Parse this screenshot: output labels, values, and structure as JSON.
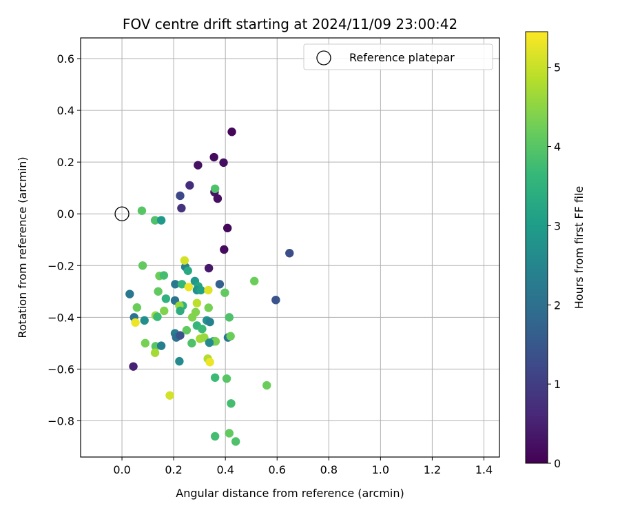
{
  "chart_data": {
    "type": "scatter",
    "title": "FOV centre drift starting at 2024/11/09 23:00:42",
    "xlabel": "Angular distance from reference (arcmin)",
    "ylabel": "Rotation from reference (arcmin)",
    "xlim": [
      -0.16,
      1.46
    ],
    "ylim": [
      -0.94,
      0.68
    ],
    "xticks": [
      0.0,
      0.2,
      0.4,
      0.6,
      0.8,
      1.0,
      1.2,
      1.4
    ],
    "xtick_labels": [
      "0.0",
      "0.2",
      "0.4",
      "0.6",
      "0.8",
      "1.0",
      "1.2",
      "1.4"
    ],
    "yticks": [
      -0.8,
      -0.6,
      -0.4,
      -0.2,
      0.0,
      0.2,
      0.4,
      0.6
    ],
    "ytick_labels": [
      "−0.8",
      "−0.6",
      "−0.4",
      "−0.2",
      "0.0",
      "0.2",
      "0.4",
      "0.6"
    ],
    "grid": true,
    "legend": {
      "position": "top-right",
      "entries": [
        {
          "label": "Reference platepar",
          "marker": "open-circle",
          "x": 0.0,
          "y": 0.0
        }
      ]
    },
    "colorbar": {
      "label": "Hours from first FF file",
      "colormap": "viridis",
      "range": [
        0,
        5.45
      ],
      "ticks": [
        0,
        1,
        2,
        3,
        4,
        5
      ],
      "tick_labels": [
        "0",
        "1",
        "2",
        "3",
        "4",
        "5"
      ],
      "stops": [
        "#440154",
        "#482878",
        "#3e4989",
        "#31688e",
        "#26828e",
        "#1f9e89",
        "#35b779",
        "#6ece58",
        "#b5de2b",
        "#fde725"
      ]
    },
    "points": [
      [
        0.425,
        0.317,
        0.1
      ],
      [
        0.356,
        0.219,
        0.15
      ],
      [
        0.393,
        0.198,
        0.2
      ],
      [
        0.294,
        0.188,
        0.25
      ],
      [
        0.262,
        0.11,
        0.7
      ],
      [
        0.225,
        0.07,
        1.2
      ],
      [
        0.358,
        0.084,
        0.3
      ],
      [
        0.37,
        0.059,
        0.2
      ],
      [
        0.23,
        0.022,
        0.8
      ],
      [
        0.408,
        -0.055,
        0.1
      ],
      [
        0.395,
        -0.138,
        0.15
      ],
      [
        0.336,
        -0.21,
        0.35
      ],
      [
        0.648,
        -0.152,
        1.3
      ],
      [
        0.595,
        -0.333,
        1.4
      ],
      [
        0.044,
        -0.59,
        0.5
      ],
      [
        0.36,
        0.097,
        3.9
      ],
      [
        0.077,
        0.012,
        4.0
      ],
      [
        0.128,
        -0.025,
        3.9
      ],
      [
        0.152,
        -0.025,
        2.9
      ],
      [
        0.08,
        -0.2,
        4.1
      ],
      [
        0.145,
        -0.24,
        4.2
      ],
      [
        0.162,
        -0.238,
        3.8
      ],
      [
        0.245,
        -0.205,
        2.3
      ],
      [
        0.255,
        -0.22,
        3.3
      ],
      [
        0.242,
        -0.18,
        5.1
      ],
      [
        0.03,
        -0.31,
        2.2
      ],
      [
        0.14,
        -0.3,
        4.1
      ],
      [
        0.206,
        -0.272,
        2.2
      ],
      [
        0.232,
        -0.272,
        3.6
      ],
      [
        0.258,
        -0.283,
        5.3
      ],
      [
        0.282,
        -0.26,
        2.9
      ],
      [
        0.295,
        -0.28,
        3.2
      ],
      [
        0.29,
        -0.295,
        2.8
      ],
      [
        0.305,
        -0.295,
        3.1
      ],
      [
        0.334,
        -0.295,
        5.2
      ],
      [
        0.378,
        -0.272,
        1.7
      ],
      [
        0.398,
        -0.305,
        4.1
      ],
      [
        0.058,
        -0.362,
        4.2
      ],
      [
        0.17,
        -0.328,
        3.5
      ],
      [
        0.205,
        -0.335,
        2.1
      ],
      [
        0.235,
        -0.355,
        3.5
      ],
      [
        0.222,
        -0.355,
        4.6
      ],
      [
        0.225,
        -0.375,
        3.4
      ],
      [
        0.163,
        -0.375,
        4.4
      ],
      [
        0.29,
        -0.345,
        4.9
      ],
      [
        0.335,
        -0.363,
        4.3
      ],
      [
        0.047,
        -0.4,
        2.0
      ],
      [
        0.052,
        -0.42,
        5.3
      ],
      [
        0.087,
        -0.412,
        2.7
      ],
      [
        0.13,
        -0.393,
        4.6
      ],
      [
        0.137,
        -0.398,
        3.7
      ],
      [
        0.272,
        -0.4,
        4.4
      ],
      [
        0.285,
        -0.38,
        4.4
      ],
      [
        0.328,
        -0.412,
        2.8
      ],
      [
        0.34,
        -0.418,
        2.4
      ],
      [
        0.415,
        -0.4,
        3.9
      ],
      [
        0.29,
        -0.432,
        3.6
      ],
      [
        0.31,
        -0.445,
        3.7
      ],
      [
        0.25,
        -0.45,
        4.1
      ],
      [
        0.205,
        -0.462,
        2.3
      ],
      [
        0.21,
        -0.478,
        2.0
      ],
      [
        0.225,
        -0.47,
        1.4
      ],
      [
        0.302,
        -0.483,
        4.7
      ],
      [
        0.318,
        -0.478,
        4.6
      ],
      [
        0.353,
        -0.493,
        3.4
      ],
      [
        0.362,
        -0.493,
        4.3
      ],
      [
        0.338,
        -0.498,
        2.6
      ],
      [
        0.41,
        -0.478,
        2.1
      ],
      [
        0.42,
        -0.473,
        4.2
      ],
      [
        0.09,
        -0.5,
        4.3
      ],
      [
        0.13,
        -0.512,
        4.0
      ],
      [
        0.128,
        -0.537,
        4.7
      ],
      [
        0.152,
        -0.51,
        2.3
      ],
      [
        0.27,
        -0.5,
        3.9
      ],
      [
        0.332,
        -0.56,
        4.8
      ],
      [
        0.34,
        -0.573,
        5.3
      ],
      [
        0.222,
        -0.57,
        2.6
      ],
      [
        0.36,
        -0.633,
        3.7
      ],
      [
        0.405,
        -0.637,
        4.0
      ],
      [
        0.56,
        -0.663,
        4.2
      ],
      [
        0.185,
        -0.702,
        5.1
      ],
      [
        0.422,
        -0.733,
        3.8
      ],
      [
        0.415,
        -0.848,
        4.1
      ],
      [
        0.36,
        -0.86,
        3.8
      ],
      [
        0.44,
        -0.88,
        3.9
      ],
      [
        0.512,
        -0.26,
        4.2
      ]
    ]
  }
}
